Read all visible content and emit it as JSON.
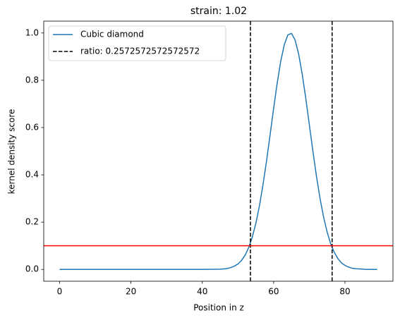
{
  "chart_data": {
    "type": "line",
    "title": "strain: 1.02",
    "x_label": "Position in z",
    "y_label": "kernel density score",
    "x": [
      0,
      10,
      20,
      30,
      40,
      45,
      46,
      47,
      48,
      49,
      50,
      51,
      52,
      53,
      54,
      55,
      56,
      57,
      58,
      59,
      60,
      61,
      62,
      63,
      64,
      65,
      66,
      67,
      68,
      69,
      70,
      71,
      72,
      73,
      74,
      75,
      76,
      77,
      78,
      79,
      80,
      81,
      82,
      83,
      84,
      85,
      86,
      87,
      88,
      89
    ],
    "series": [
      {
        "name": "Cubic diamond",
        "color": "#1f77b4",
        "values": [
          0,
          0,
          0,
          0,
          0,
          0.001,
          0.002,
          0.004,
          0.008,
          0.014,
          0.023,
          0.038,
          0.06,
          0.092,
          0.136,
          0.194,
          0.267,
          0.356,
          0.457,
          0.568,
          0.681,
          0.788,
          0.881,
          0.951,
          0.992,
          0.998,
          0.971,
          0.912,
          0.827,
          0.725,
          0.613,
          0.501,
          0.395,
          0.301,
          0.222,
          0.158,
          0.108,
          0.072,
          0.046,
          0.028,
          0.017,
          0.01,
          0.005,
          0.003,
          0.002,
          0.001,
          0,
          0,
          0,
          0
        ]
      }
    ],
    "vlines": {
      "name": "ratio: 0.2572572572572572",
      "color": "#000000",
      "values": [
        53.5,
        76.4
      ]
    },
    "hline": {
      "color": "#ff0000",
      "value": 0.1
    },
    "xlim": [
      -4.45,
      93.45
    ],
    "ylim": [
      -0.05,
      1.05
    ],
    "xticks": [
      0,
      20,
      40,
      60,
      80
    ],
    "yticks": [
      {
        "value": 0,
        "label": "0.0"
      },
      0.2,
      0.4,
      0.6,
      0.8,
      {
        "value": 1,
        "label": "1.0"
      }
    ],
    "legend": "upper left"
  }
}
